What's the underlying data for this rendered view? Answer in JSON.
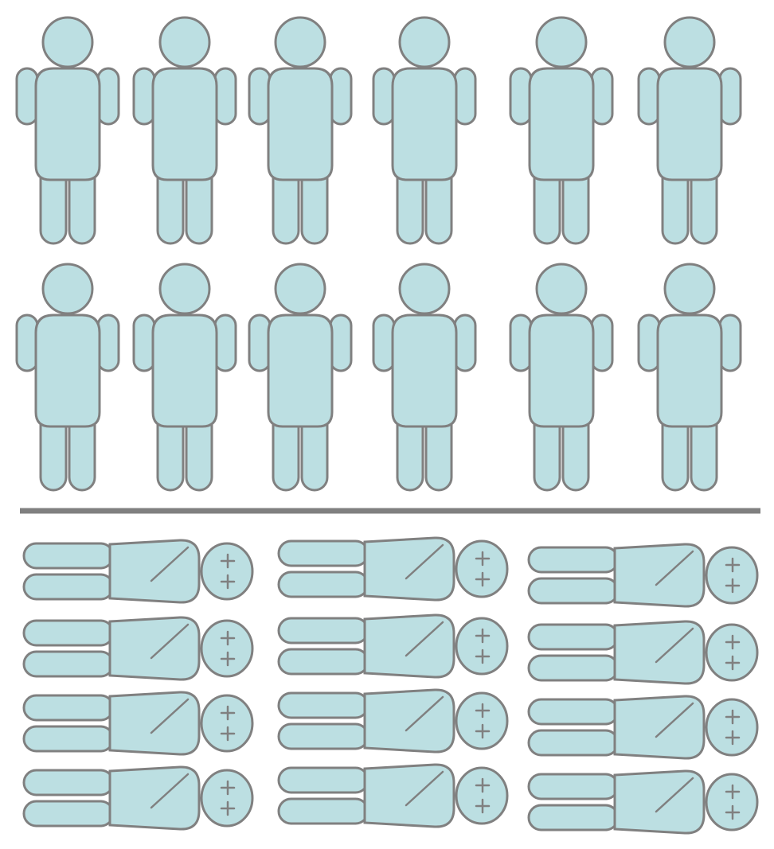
{
  "colors": {
    "figure_fill": "#BCDFE2",
    "outline": "#808080",
    "divider": "#808080",
    "background": "#FFFFFF"
  },
  "standing_group": {
    "icon": "standing-person-icon",
    "rows": 2,
    "per_row": 6,
    "count": 12
  },
  "lying_group": {
    "icon": "lying-deceased-person-icon",
    "columns": 3,
    "per_column": 4,
    "count": 12,
    "eye_mark": "+"
  }
}
